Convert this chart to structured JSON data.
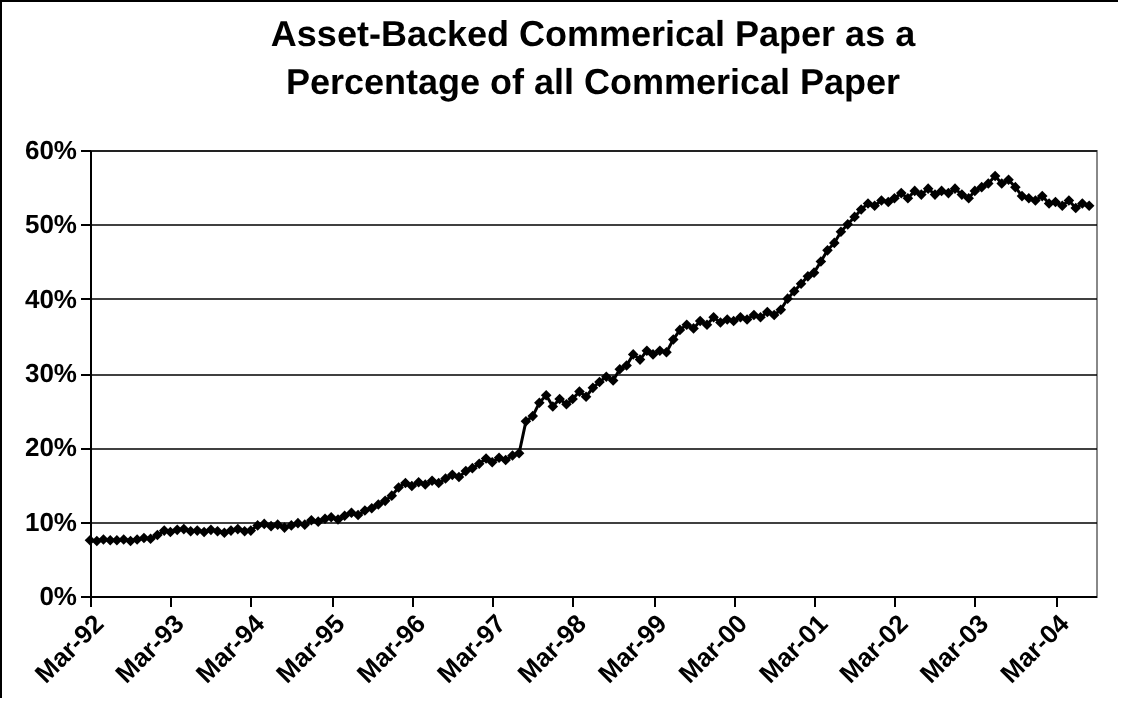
{
  "chart_data": {
    "type": "line",
    "title": "Asset-Backed Commerical Paper as a\nPercentage of all Commerical Paper",
    "x": [
      "1992-03",
      "1992-04",
      "1992-05",
      "1992-06",
      "1992-07",
      "1992-08",
      "1992-09",
      "1992-10",
      "1992-11",
      "1992-12",
      "1993-01",
      "1993-02",
      "1993-03",
      "1993-04",
      "1993-05",
      "1993-06",
      "1993-07",
      "1993-08",
      "1993-09",
      "1993-10",
      "1993-11",
      "1993-12",
      "1994-01",
      "1994-02",
      "1994-03",
      "1994-04",
      "1994-05",
      "1994-06",
      "1994-07",
      "1994-08",
      "1994-09",
      "1994-10",
      "1994-11",
      "1994-12",
      "1995-01",
      "1995-02",
      "1995-03",
      "1995-04",
      "1995-05",
      "1995-06",
      "1995-07",
      "1995-08",
      "1995-09",
      "1995-10",
      "1995-11",
      "1995-12",
      "1996-01",
      "1996-02",
      "1996-03",
      "1996-04",
      "1996-05",
      "1996-06",
      "1996-07",
      "1996-08",
      "1996-09",
      "1996-10",
      "1996-11",
      "1996-12",
      "1997-01",
      "1997-02",
      "1997-03",
      "1997-04",
      "1997-05",
      "1997-06",
      "1997-07",
      "1997-08",
      "1997-09",
      "1997-10",
      "1997-11",
      "1997-12",
      "1998-01",
      "1998-02",
      "1998-03",
      "1998-04",
      "1998-05",
      "1998-06",
      "1998-07",
      "1998-08",
      "1998-09",
      "1998-10",
      "1998-11",
      "1998-12",
      "1999-01",
      "1999-02",
      "1999-03",
      "1999-04",
      "1999-05",
      "1999-06",
      "1999-07",
      "1999-08",
      "1999-09",
      "1999-10",
      "1999-11",
      "1999-12",
      "2000-01",
      "2000-02",
      "2000-03",
      "2000-04",
      "2000-05",
      "2000-06",
      "2000-07",
      "2000-08",
      "2000-09",
      "2000-10",
      "2000-11",
      "2000-12",
      "2001-01",
      "2001-02",
      "2001-03",
      "2001-04",
      "2001-05",
      "2001-06",
      "2001-07",
      "2001-08",
      "2001-09",
      "2001-10",
      "2001-11",
      "2001-12",
      "2002-01",
      "2002-02",
      "2002-03",
      "2002-04",
      "2002-05",
      "2002-06",
      "2002-07",
      "2002-08",
      "2002-09",
      "2002-10",
      "2002-11",
      "2002-12",
      "2003-01",
      "2003-02",
      "2003-03",
      "2003-04",
      "2003-05",
      "2003-06",
      "2003-07",
      "2003-08",
      "2003-09",
      "2003-10",
      "2003-11",
      "2003-12",
      "2004-01",
      "2004-02",
      "2004-03",
      "2004-04",
      "2004-05",
      "2004-06",
      "2004-07",
      "2004-08"
    ],
    "series": [
      {
        "color": "#000000",
        "values": [
          7.5,
          7.4,
          7.6,
          7.5,
          7.5,
          7.6,
          7.4,
          7.6,
          7.8,
          7.7,
          8.2,
          8.8,
          8.6,
          8.9,
          9.0,
          8.7,
          8.8,
          8.6,
          8.9,
          8.7,
          8.5,
          8.8,
          9.0,
          8.7,
          8.8,
          9.5,
          9.7,
          9.4,
          9.6,
          9.2,
          9.5,
          9.8,
          9.6,
          10.2,
          10.0,
          10.4,
          10.6,
          10.3,
          10.8,
          11.2,
          10.9,
          11.5,
          11.8,
          12.3,
          12.8,
          13.5,
          14.6,
          15.2,
          14.8,
          15.3,
          15.0,
          15.5,
          15.2,
          15.8,
          16.3,
          16.0,
          16.8,
          17.2,
          17.8,
          18.5,
          18.0,
          18.6,
          18.3,
          18.9,
          19.2,
          23.5,
          24.2,
          26.0,
          27.0,
          25.5,
          26.5,
          25.8,
          26.5,
          27.5,
          26.8,
          28.0,
          28.8,
          29.5,
          29.0,
          30.5,
          31.0,
          32.5,
          31.8,
          33.0,
          32.5,
          33.0,
          32.8,
          34.5,
          35.8,
          36.5,
          36.0,
          37.0,
          36.5,
          37.5,
          36.8,
          37.2,
          37.0,
          37.5,
          37.2,
          37.8,
          37.5,
          38.2,
          37.8,
          38.5,
          40.0,
          41.0,
          42.0,
          43.0,
          43.5,
          45.0,
          46.5,
          47.5,
          49.0,
          50.0,
          51.0,
          52.0,
          52.8,
          52.5,
          53.2,
          53.0,
          53.5,
          54.2,
          53.5,
          54.5,
          54.0,
          54.8,
          54.0,
          54.5,
          54.2,
          54.8,
          54.0,
          53.5,
          54.5,
          55.0,
          55.5,
          56.5,
          55.5,
          56.0,
          55.0,
          53.8,
          53.5,
          53.2,
          53.8,
          52.8,
          53.0,
          52.5,
          53.2,
          52.2,
          52.8,
          52.5
        ]
      }
    ],
    "xlim": [
      "1992-03",
      "2004-09"
    ],
    "xticks": [
      {
        "value": "1992-03",
        "label": "Mar-92"
      },
      {
        "value": "1993-03",
        "label": "Mar-93"
      },
      {
        "value": "1994-03",
        "label": "Mar-94"
      },
      {
        "value": "1995-03",
        "label": "Mar-95"
      },
      {
        "value": "1996-03",
        "label": "Mar-96"
      },
      {
        "value": "1997-03",
        "label": "Mar-97"
      },
      {
        "value": "1998-03",
        "label": "Mar-98"
      },
      {
        "value": "1999-03",
        "label": "Mar-99"
      },
      {
        "value": "2000-03",
        "label": "Mar-00"
      },
      {
        "value": "2001-03",
        "label": "Mar-01"
      },
      {
        "value": "2002-03",
        "label": "Mar-02"
      },
      {
        "value": "2003-03",
        "label": "Mar-03"
      },
      {
        "value": "2004-03",
        "label": "Mar-04"
      }
    ],
    "ylim": [
      0,
      60
    ],
    "yticks": [
      {
        "value": 0,
        "label": "0%"
      },
      {
        "value": 10,
        "label": "10%"
      },
      {
        "value": 20,
        "label": "20%"
      },
      {
        "value": 30,
        "label": "30%"
      },
      {
        "value": 40,
        "label": "40%"
      },
      {
        "value": 50,
        "label": "50%"
      },
      {
        "value": 60,
        "label": "60%"
      }
    ],
    "grid": "y",
    "marker": "diamond",
    "line_style": "solid",
    "legend": false
  }
}
